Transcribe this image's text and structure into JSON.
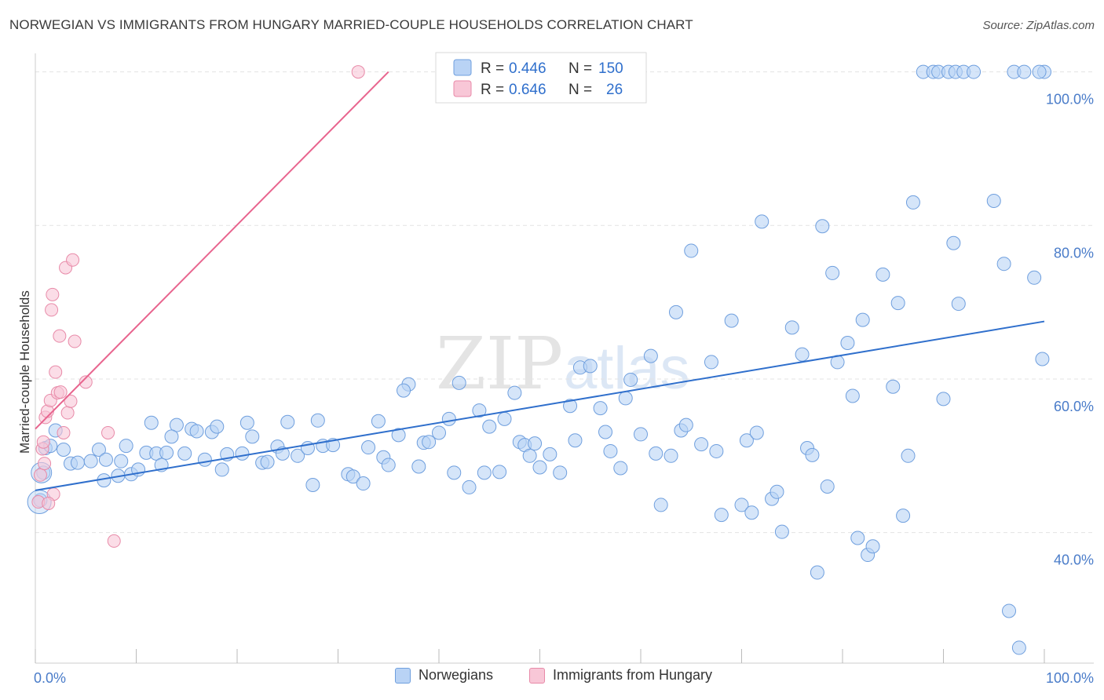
{
  "header": {
    "title": "NORWEGIAN VS IMMIGRANTS FROM HUNGARY MARRIED-COUPLE HOUSEHOLDS CORRELATION CHART",
    "source": "Source: ZipAtlas.com"
  },
  "watermark": {
    "zip": "ZIP",
    "atlas": "atlas"
  },
  "colors": {
    "blue_fill": "#b9d3f5",
    "blue_stroke": "#6f9fde",
    "blue_line": "#2f6fcc",
    "pink_fill": "#f8c7d7",
    "pink_stroke": "#e88aa8",
    "pink_line": "#e8648e",
    "tick_text": "#4a7cc9",
    "grid": "#e3e3e3"
  },
  "legend": {
    "rows": [
      {
        "r_label": "R = ",
        "r_value": "0.446",
        "n_label": "N = ",
        "n_value": "150",
        "series": "blue"
      },
      {
        "r_label": "R = ",
        "r_value": "0.646",
        "n_label": "N = ",
        "n_value": "26",
        "series": "pink"
      }
    ]
  },
  "chart_data": {
    "type": "scatter",
    "title": "NORWEGIAN VS IMMIGRANTS FROM HUNGARY MARRIED-COUPLE HOUSEHOLDS CORRELATION CHART",
    "xlabel": "",
    "ylabel": "Married-couple Households",
    "xlim": [
      0,
      100
    ],
    "ylim": [
      23,
      102
    ],
    "x_tick_labels": [
      "0.0%",
      "100.0%"
    ],
    "y_ticks": [
      40,
      60,
      80,
      100
    ],
    "y_tick_labels": [
      "40.0%",
      "60.0%",
      "80.0%",
      "100.0%"
    ],
    "grid": true,
    "legend_position": "top-center",
    "series": [
      {
        "name": "Norwegians",
        "color": "#b9d3f5",
        "R": 0.446,
        "N": 150,
        "trendline": [
          [
            0,
            45.5
          ],
          [
            100,
            67.5
          ]
        ],
        "points": [
          [
            0.5,
            44.2
          ],
          [
            0.8,
            47.8
          ],
          [
            1.0,
            51.0
          ],
          [
            1.5,
            51.3
          ],
          [
            2.0,
            53.3
          ],
          [
            2.8,
            50.8
          ],
          [
            3.5,
            49.0
          ],
          [
            4.2,
            49.1
          ],
          [
            5.5,
            49.3
          ],
          [
            6.3,
            50.8
          ],
          [
            7.0,
            49.5
          ],
          [
            6.8,
            46.8
          ],
          [
            8.2,
            47.4
          ],
          [
            9.0,
            51.3
          ],
          [
            8.5,
            49.3
          ],
          [
            9.5,
            47.6
          ],
          [
            10.2,
            48.2
          ],
          [
            11.0,
            50.4
          ],
          [
            11.5,
            54.3
          ],
          [
            12.0,
            50.3
          ],
          [
            12.5,
            48.8
          ],
          [
            13.0,
            50.4
          ],
          [
            14.0,
            54.0
          ],
          [
            13.5,
            52.5
          ],
          [
            14.8,
            50.3
          ],
          [
            15.5,
            53.5
          ],
          [
            16.0,
            53.2
          ],
          [
            16.8,
            49.5
          ],
          [
            17.5,
            53.1
          ],
          [
            18.0,
            53.8
          ],
          [
            19.0,
            50.2
          ],
          [
            18.5,
            48.2
          ],
          [
            20.5,
            50.3
          ],
          [
            21.5,
            52.5
          ],
          [
            21.0,
            54.3
          ],
          [
            22.5,
            49.1
          ],
          [
            23.0,
            49.2
          ],
          [
            24.0,
            51.2
          ],
          [
            25.0,
            54.4
          ],
          [
            24.5,
            50.3
          ],
          [
            26.0,
            50.0
          ],
          [
            27.0,
            51.0
          ],
          [
            27.5,
            46.2
          ],
          [
            28.0,
            54.6
          ],
          [
            28.5,
            51.3
          ],
          [
            29.5,
            51.4
          ],
          [
            31.0,
            47.6
          ],
          [
            31.5,
            47.3
          ],
          [
            32.5,
            46.4
          ],
          [
            33.0,
            51.1
          ],
          [
            34.0,
            54.5
          ],
          [
            34.5,
            49.8
          ],
          [
            35.0,
            48.8
          ],
          [
            36.0,
            52.7
          ],
          [
            37.0,
            59.3
          ],
          [
            36.5,
            58.5
          ],
          [
            38.0,
            48.6
          ],
          [
            38.5,
            51.7
          ],
          [
            39.0,
            51.8
          ],
          [
            40.0,
            53.0
          ],
          [
            41.0,
            54.8
          ],
          [
            41.5,
            47.8
          ],
          [
            42.0,
            59.5
          ],
          [
            43.0,
            45.9
          ],
          [
            44.0,
            55.9
          ],
          [
            44.5,
            47.8
          ],
          [
            46.0,
            47.9
          ],
          [
            45.0,
            53.8
          ],
          [
            46.5,
            54.8
          ],
          [
            47.5,
            58.2
          ],
          [
            48.0,
            51.8
          ],
          [
            48.5,
            51.4
          ],
          [
            49.0,
            50.0
          ],
          [
            49.5,
            51.6
          ],
          [
            50.0,
            48.5
          ],
          [
            51.0,
            50.2
          ],
          [
            52.0,
            47.8
          ],
          [
            53.0,
            56.5
          ],
          [
            53.5,
            52.0
          ],
          [
            54.0,
            61.5
          ],
          [
            55.0,
            61.7
          ],
          [
            56.0,
            56.2
          ],
          [
            56.5,
            53.1
          ],
          [
            57.0,
            50.6
          ],
          [
            58.0,
            48.4
          ],
          [
            58.5,
            57.5
          ],
          [
            59.0,
            59.9
          ],
          [
            60.0,
            52.8
          ],
          [
            61.0,
            63.0
          ],
          [
            61.5,
            50.3
          ],
          [
            62.0,
            43.6
          ],
          [
            63.0,
            50.0
          ],
          [
            63.5,
            68.7
          ],
          [
            64.0,
            53.3
          ],
          [
            64.5,
            54.0
          ],
          [
            65.0,
            76.7
          ],
          [
            66.0,
            51.5
          ],
          [
            67.0,
            62.2
          ],
          [
            67.5,
            50.6
          ],
          [
            68.0,
            42.3
          ],
          [
            69.0,
            67.6
          ],
          [
            70.0,
            43.6
          ],
          [
            70.5,
            52.0
          ],
          [
            71.0,
            42.6
          ],
          [
            71.5,
            53.0
          ],
          [
            72.0,
            80.5
          ],
          [
            73.0,
            44.4
          ],
          [
            73.5,
            45.3
          ],
          [
            74.0,
            40.1
          ],
          [
            75.0,
            66.7
          ],
          [
            76.0,
            63.2
          ],
          [
            76.5,
            51.0
          ],
          [
            77.0,
            50.1
          ],
          [
            77.5,
            34.8
          ],
          [
            78.0,
            79.9
          ],
          [
            78.5,
            46.0
          ],
          [
            79.0,
            73.8
          ],
          [
            79.5,
            62.2
          ],
          [
            80.5,
            64.7
          ],
          [
            81.0,
            57.8
          ],
          [
            81.5,
            39.3
          ],
          [
            82.0,
            67.7
          ],
          [
            82.5,
            37.1
          ],
          [
            83.0,
            38.2
          ],
          [
            84.0,
            73.6
          ],
          [
            85.0,
            59.0
          ],
          [
            85.5,
            69.9
          ],
          [
            86.0,
            42.2
          ],
          [
            86.5,
            50.0
          ],
          [
            87.0,
            83.0
          ],
          [
            90.0,
            57.4
          ],
          [
            91.0,
            77.7
          ],
          [
            91.5,
            69.8
          ],
          [
            95.0,
            83.2
          ],
          [
            96.0,
            75.0
          ],
          [
            100.0,
            100.0
          ],
          [
            97.0,
            100.0
          ],
          [
            98.0,
            100.0
          ],
          [
            99.5,
            100.0
          ],
          [
            99.0,
            73.2
          ],
          [
            99.8,
            62.6
          ],
          [
            96.5,
            29.8
          ],
          [
            97.5,
            25.0
          ],
          [
            88.0,
            100.0
          ],
          [
            89.0,
            100.0
          ],
          [
            89.5,
            100.0
          ],
          [
            90.5,
            100.0
          ],
          [
            91.2,
            100.0
          ],
          [
            92.0,
            100.0
          ],
          [
            93.0,
            100.0
          ]
        ]
      },
      {
        "name": "Immigrants from Hungary",
        "color": "#f8c7d7",
        "R": 0.646,
        "N": 26,
        "trendline": [
          [
            0,
            53.5
          ],
          [
            35,
            100.0
          ]
        ],
        "points": [
          [
            0.3,
            44.0
          ],
          [
            0.5,
            47.5
          ],
          [
            0.7,
            50.9
          ],
          [
            0.8,
            51.8
          ],
          [
            1.0,
            55.0
          ],
          [
            1.2,
            55.8
          ],
          [
            1.5,
            57.2
          ],
          [
            1.6,
            69.0
          ],
          [
            1.7,
            71.0
          ],
          [
            2.0,
            60.9
          ],
          [
            2.2,
            58.2
          ],
          [
            2.4,
            65.6
          ],
          [
            2.5,
            58.3
          ],
          [
            2.8,
            53.0
          ],
          [
            3.0,
            74.5
          ],
          [
            3.2,
            55.6
          ],
          [
            3.5,
            57.1
          ],
          [
            3.7,
            75.5
          ],
          [
            3.9,
            64.9
          ],
          [
            5.0,
            59.6
          ],
          [
            7.2,
            53.0
          ],
          [
            7.8,
            38.9
          ],
          [
            1.8,
            45.0
          ],
          [
            1.3,
            43.8
          ],
          [
            0.9,
            49.0
          ],
          [
            32.0,
            100.0
          ]
        ]
      }
    ]
  }
}
